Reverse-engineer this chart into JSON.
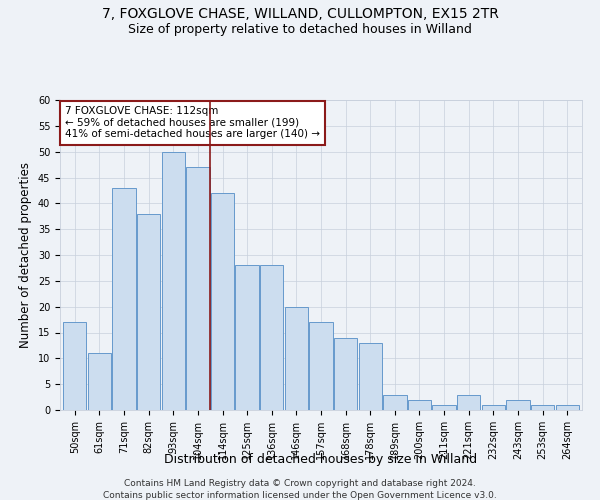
{
  "title1": "7, FOXGLOVE CHASE, WILLAND, CULLOMPTON, EX15 2TR",
  "title2": "Size of property relative to detached houses in Willand",
  "xlabel": "Distribution of detached houses by size in Willand",
  "ylabel": "Number of detached properties",
  "categories": [
    "50sqm",
    "61sqm",
    "71sqm",
    "82sqm",
    "93sqm",
    "104sqm",
    "114sqm",
    "125sqm",
    "136sqm",
    "146sqm",
    "157sqm",
    "168sqm",
    "178sqm",
    "189sqm",
    "200sqm",
    "211sqm",
    "221sqm",
    "232sqm",
    "243sqm",
    "253sqm",
    "264sqm"
  ],
  "values": [
    17,
    11,
    43,
    38,
    50,
    47,
    42,
    28,
    28,
    20,
    17,
    14,
    13,
    3,
    2,
    1,
    3,
    1,
    2,
    1,
    1
  ],
  "bar_color": "#ccddef",
  "bar_edge_color": "#6699cc",
  "vline_x_index": 6,
  "vline_color": "#8b1a1a",
  "annotation_text": "7 FOXGLOVE CHASE: 112sqm\n← 59% of detached houses are smaller (199)\n41% of semi-detached houses are larger (140) →",
  "annotation_box_color": "#ffffff",
  "annotation_box_edge_color": "#8b1a1a",
  "ylim": [
    0,
    60
  ],
  "yticks": [
    0,
    5,
    10,
    15,
    20,
    25,
    30,
    35,
    40,
    45,
    50,
    55,
    60
  ],
  "footer1": "Contains HM Land Registry data © Crown copyright and database right 2024.",
  "footer2": "Contains public sector information licensed under the Open Government Licence v3.0.",
  "bg_color": "#eef2f7",
  "plot_bg_color": "#eef2f7",
  "grid_color": "#c8d0dc",
  "title1_fontsize": 10,
  "title2_fontsize": 9,
  "xlabel_fontsize": 9,
  "ylabel_fontsize": 8.5,
  "tick_fontsize": 7,
  "footer_fontsize": 6.5,
  "annot_fontsize": 7.5
}
